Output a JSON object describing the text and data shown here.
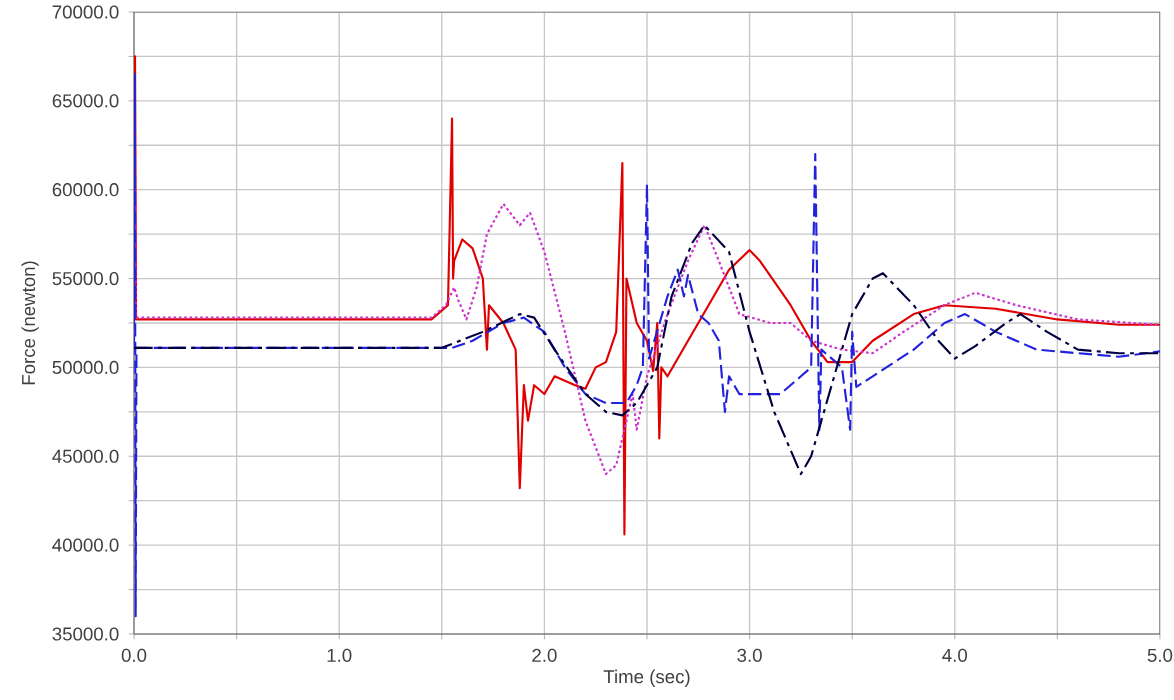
{
  "chart_data": {
    "type": "line",
    "xlabel": "Time (sec)",
    "ylabel": "Force (newton)",
    "xlim": [
      0,
      5
    ],
    "ylim": [
      35000,
      70000
    ],
    "xticks": [
      {
        "value": 0,
        "label": "0.0"
      },
      {
        "value": 0.5,
        "label": null
      },
      {
        "value": 1,
        "label": "1.0"
      },
      {
        "value": 1.5,
        "label": null
      },
      {
        "value": 2,
        "label": "2.0"
      },
      {
        "value": 2.5,
        "label": null
      },
      {
        "value": 3,
        "label": "3.0"
      },
      {
        "value": 3.5,
        "label": null
      },
      {
        "value": 4,
        "label": "4.0"
      },
      {
        "value": 4.5,
        "label": null
      },
      {
        "value": 5,
        "label": "5.0"
      }
    ],
    "yticks": [
      {
        "value": 35000,
        "label": "35000.0"
      },
      {
        "value": 37500,
        "label": null
      },
      {
        "value": 40000,
        "label": "40000.0"
      },
      {
        "value": 42500,
        "label": null
      },
      {
        "value": 45000,
        "label": "45000.0"
      },
      {
        "value": 47500,
        "label": null
      },
      {
        "value": 50000,
        "label": "50000.0"
      },
      {
        "value": 52500,
        "label": null
      },
      {
        "value": 55000,
        "label": "55000.0"
      },
      {
        "value": 57500,
        "label": null
      },
      {
        "value": 60000,
        "label": "60000.0"
      },
      {
        "value": 62500,
        "label": null
      },
      {
        "value": 65000,
        "label": "65000.0"
      },
      {
        "value": 67500,
        "label": null
      },
      {
        "value": 70000,
        "label": "70000.0"
      }
    ],
    "grid": true,
    "marker": "none",
    "series": [
      {
        "color": "#e00000",
        "line_style": "solid",
        "x": [
          0,
          0.005,
          0.01,
          1.45,
          1.53,
          1.55,
          1.555,
          1.56,
          1.6,
          1.65,
          1.7,
          1.72,
          1.73,
          1.8,
          1.86,
          1.88,
          1.9,
          1.92,
          1.95,
          2.0,
          2.05,
          2.15,
          2.2,
          2.25,
          2.3,
          2.35,
          2.38,
          2.39,
          2.4,
          2.45,
          2.5,
          2.53,
          2.55,
          2.56,
          2.57,
          2.6,
          2.7,
          2.8,
          2.9,
          3.0,
          3.05,
          3.2,
          3.3,
          3.38,
          3.5,
          3.6,
          3.8,
          3.95,
          4.2,
          4.5,
          4.8,
          5.0
        ],
        "values": [
          52700,
          67500,
          52700,
          52700,
          53500,
          64000,
          55000,
          56000,
          57200,
          56700,
          55000,
          51000,
          53500,
          52500,
          51000,
          43200,
          49000,
          47000,
          49000,
          48500,
          49500,
          49000,
          48800,
          50000,
          50300,
          52000,
          61500,
          40600,
          55000,
          52500,
          51500,
          49800,
          52500,
          46000,
          50000,
          49500,
          51500,
          53500,
          55500,
          56600,
          56000,
          53500,
          51500,
          50300,
          50300,
          51500,
          53000,
          53500,
          53300,
          52700,
          52400,
          52400
        ]
      },
      {
        "color": "#cc33cc",
        "line_style": "dotted",
        "x": [
          0,
          0.005,
          0.01,
          1.45,
          1.52,
          1.56,
          1.58,
          1.62,
          1.67,
          1.72,
          1.8,
          1.88,
          1.93,
          2.0,
          2.1,
          2.2,
          2.3,
          2.35,
          2.4,
          2.43,
          2.45,
          2.5,
          2.6,
          2.7,
          2.78,
          2.85,
          2.95,
          3.1,
          3.2,
          3.3,
          3.45,
          3.6,
          3.75,
          3.95,
          4.1,
          4.3,
          4.6,
          5.0
        ],
        "values": [
          52800,
          60000,
          52800,
          52800,
          53500,
          54500,
          53800,
          52700,
          54500,
          57500,
          59200,
          58000,
          58700,
          56500,
          52000,
          47000,
          44000,
          44500,
          47000,
          48500,
          46500,
          49500,
          53000,
          56000,
          58000,
          56000,
          53000,
          52500,
          52500,
          51500,
          51000,
          50800,
          52000,
          53500,
          54200,
          53500,
          52700,
          52400
        ]
      },
      {
        "color": "#2222dd",
        "line_style": "dashed",
        "x": [
          0,
          0.004,
          0.008,
          0.012,
          1.55,
          1.65,
          1.8,
          1.9,
          2.0,
          2.1,
          2.2,
          2.3,
          2.4,
          2.45,
          2.48,
          2.5,
          2.51,
          2.6,
          2.65,
          2.68,
          2.7,
          2.75,
          2.8,
          2.85,
          2.88,
          2.9,
          2.95,
          3.05,
          3.15,
          3.25,
          3.3,
          3.32,
          3.34,
          3.35,
          3.45,
          3.49,
          3.5,
          3.52,
          3.6,
          3.8,
          3.95,
          4.05,
          4.2,
          4.4,
          4.6,
          4.8,
          5.0
        ],
        "values": [
          51100,
          66500,
          36000,
          51100,
          51100,
          51500,
          52500,
          52800,
          52000,
          50000,
          48500,
          48000,
          48000,
          49000,
          50000,
          60300,
          50500,
          54000,
          55500,
          54000,
          55200,
          53000,
          52500,
          51500,
          47500,
          49500,
          48500,
          48500,
          48500,
          49500,
          50000,
          62000,
          46500,
          51000,
          50000,
          46500,
          52000,
          48900,
          49500,
          51000,
          52500,
          53000,
          52000,
          51000,
          50800,
          50600,
          50900
        ]
      },
      {
        "color": "#000040",
        "line_style": "dashdot",
        "x": [
          0,
          1.5,
          1.7,
          1.88,
          1.95,
          2.05,
          2.2,
          2.3,
          2.38,
          2.45,
          2.55,
          2.62,
          2.72,
          2.78,
          2.9,
          3.0,
          3.12,
          3.25,
          3.3,
          3.4,
          3.5,
          3.6,
          3.65,
          3.8,
          3.92,
          4.0,
          4.1,
          4.25,
          4.32,
          4.45,
          4.6,
          4.8,
          5.0
        ],
        "values": [
          51100,
          51100,
          52000,
          53000,
          52800,
          51000,
          48500,
          47500,
          47300,
          48000,
          50000,
          54000,
          57000,
          58000,
          56500,
          52000,
          47500,
          44000,
          45000,
          49000,
          53000,
          55000,
          55300,
          53500,
          51500,
          50500,
          51200,
          52500,
          53000,
          52000,
          51000,
          50800,
          50800
        ]
      }
    ]
  }
}
